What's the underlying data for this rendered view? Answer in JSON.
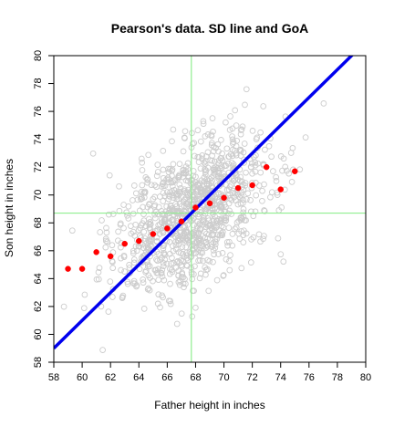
{
  "chart_data": {
    "type": "scatter",
    "title": "Pearson's data. SD line and GoA",
    "xlabel": "Father height in inches",
    "ylabel": "Son height in inches",
    "xlim": [
      58,
      80
    ],
    "ylim": [
      58,
      80
    ],
    "xticks": [
      58,
      60,
      62,
      64,
      66,
      68,
      70,
      72,
      74,
      76,
      78,
      80
    ],
    "yticks": [
      58,
      60,
      62,
      64,
      66,
      68,
      70,
      72,
      74,
      76,
      78,
      80
    ],
    "grid": false,
    "legend": "none",
    "colors": {
      "scatter_points": "#cccccc",
      "sd_line": "#0000ee",
      "mean_lines": "#90ee90",
      "graph_of_averages": "#ff0000"
    },
    "reference_lines": {
      "mean_father": 67.7,
      "mean_son": 68.7
    },
    "sd_line": {
      "intercept": 1.0,
      "slope": 1.0
    },
    "graph_of_averages": {
      "x": [
        59,
        60,
        61,
        62,
        63,
        64,
        65,
        66,
        67,
        68,
        69,
        70,
        71,
        72,
        73,
        74,
        75
      ],
      "y": [
        64.7,
        64.7,
        65.9,
        65.6,
        66.5,
        66.7,
        67.2,
        67.6,
        68.1,
        69.1,
        69.4,
        69.8,
        70.5,
        70.7,
        72.0,
        70.4,
        71.7
      ]
    }
  }
}
